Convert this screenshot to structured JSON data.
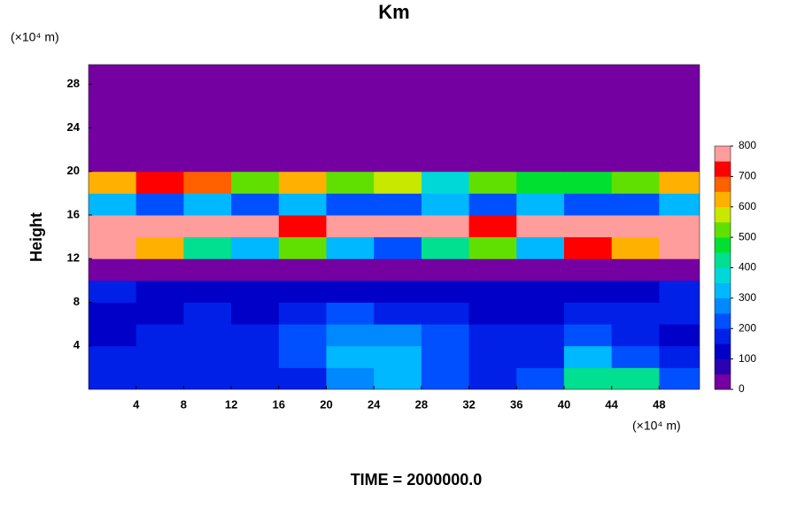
{
  "chart_data": {
    "type": "heatmap",
    "title": "Km",
    "ylabel": "Height",
    "y_unit": "(×10⁴ m)",
    "x_unit": "(×10⁴ m)",
    "footer": "TIME = 2000000.0",
    "x": [
      2,
      6,
      10,
      14,
      18,
      22,
      26,
      30,
      34,
      38,
      42,
      46,
      50
    ],
    "y": [
      1,
      3,
      5,
      7,
      9,
      11,
      13,
      15,
      17,
      19,
      21,
      23,
      25,
      27,
      29
    ],
    "z": [
      [
        150,
        150,
        150,
        150,
        150,
        250,
        300,
        200,
        150,
        200,
        400,
        400,
        200
      ],
      [
        150,
        150,
        150,
        150,
        200,
        300,
        300,
        200,
        150,
        150,
        300,
        200,
        150
      ],
      [
        100,
        150,
        150,
        150,
        200,
        250,
        250,
        200,
        150,
        150,
        200,
        150,
        100
      ],
      [
        100,
        100,
        150,
        100,
        150,
        200,
        150,
        150,
        100,
        100,
        150,
        150,
        150
      ],
      [
        150,
        100,
        100,
        100,
        100,
        100,
        100,
        100,
        100,
        100,
        100,
        100,
        150
      ],
      [
        0,
        0,
        0,
        0,
        0,
        0,
        0,
        0,
        0,
        0,
        0,
        0,
        0
      ],
      [
        800,
        600,
        400,
        300,
        500,
        300,
        200,
        400,
        500,
        300,
        700,
        600,
        800
      ],
      [
        800,
        800,
        800,
        800,
        700,
        800,
        800,
        800,
        700,
        800,
        800,
        800,
        800
      ],
      [
        300,
        200,
        300,
        200,
        300,
        200,
        200,
        300,
        200,
        300,
        200,
        200,
        300
      ],
      [
        600,
        700,
        650,
        500,
        600,
        500,
        550,
        350,
        500,
        450,
        450,
        500,
        600
      ],
      [
        0,
        0,
        0,
        0,
        0,
        0,
        0,
        0,
        0,
        0,
        0,
        0,
        0
      ],
      [
        0,
        0,
        0,
        0,
        0,
        0,
        0,
        0,
        0,
        0,
        0,
        0,
        0
      ],
      [
        0,
        0,
        0,
        0,
        0,
        0,
        0,
        0,
        0,
        0,
        0,
        0,
        0
      ],
      [
        0,
        0,
        0,
        0,
        0,
        0,
        0,
        0,
        0,
        0,
        0,
        0,
        0
      ],
      [
        0,
        0,
        0,
        0,
        0,
        0,
        0,
        0,
        0,
        0,
        0,
        0,
        0
      ]
    ],
    "levels": [
      0,
      50,
      100,
      150,
      200,
      250,
      300,
      350,
      400,
      450,
      500,
      550,
      600,
      650,
      700,
      750,
      800
    ],
    "colors": [
      "#7400a2",
      "#2a00b0",
      "#0000c8",
      "#0020e8",
      "#0050ff",
      "#0088ff",
      "#00b8ff",
      "#00d8d8",
      "#00e090",
      "#00e030",
      "#60e000",
      "#c8e800",
      "#ffb000",
      "#ff6000",
      "#ff0000",
      "#ff9c9c"
    ],
    "cbar_ticks": [
      0,
      100,
      200,
      300,
      400,
      500,
      600,
      700,
      800
    ],
    "xlim": [
      0,
      51.4
    ],
    "ylim": [
      0,
      29.8
    ],
    "xticks": [
      4,
      8,
      12,
      16,
      20,
      24,
      28,
      32,
      36,
      40,
      44,
      48
    ],
    "yticks": [
      4,
      8,
      12,
      16,
      20,
      24,
      28
    ]
  }
}
